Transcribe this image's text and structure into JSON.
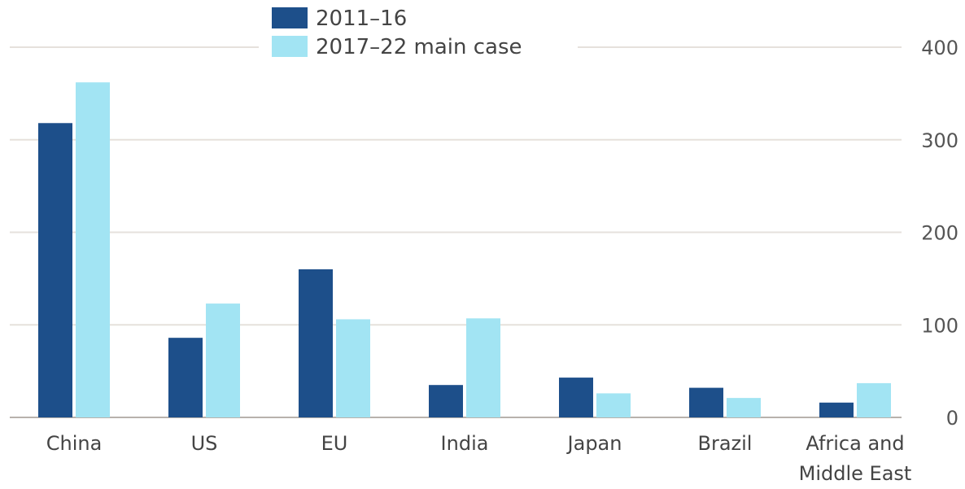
{
  "chart_data": {
    "type": "bar",
    "categories": [
      "China",
      "US",
      "EU",
      "India",
      "Japan",
      "Brazil",
      "Africa and Middle East"
    ],
    "category_lines": [
      [
        "China"
      ],
      [
        "US"
      ],
      [
        "EU"
      ],
      [
        "India"
      ],
      [
        "Japan"
      ],
      [
        "Brazil"
      ],
      [
        "Africa and",
        "Middle East"
      ]
    ],
    "series": [
      {
        "name": "2011–16",
        "color": "#1d4f8a",
        "values": [
          318,
          86,
          160,
          35,
          43,
          32,
          16
        ]
      },
      {
        "name": "2017–22 main case",
        "color": "#a2e4f3",
        "values": [
          362,
          123,
          106,
          107,
          26,
          21,
          37
        ]
      }
    ],
    "ylim": [
      0,
      400
    ],
    "yticks": [
      0,
      100,
      200,
      300,
      400
    ],
    "y_axis_side": "right",
    "grid": true,
    "gridline_color": "#e6e1dc",
    "legend_position": "top-center",
    "title": "",
    "xlabel": "",
    "ylabel": ""
  }
}
